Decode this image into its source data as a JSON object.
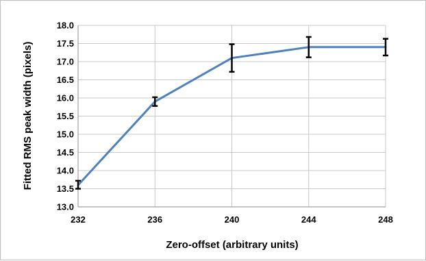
{
  "chart_data": {
    "type": "line",
    "title": "",
    "xlabel": "Zero-offset (arbitrary units)",
    "ylabel": "Fitted RMS peak width  (pixels)",
    "xlim": [
      232,
      248
    ],
    "ylim": [
      13.0,
      18.0
    ],
    "x_ticks": [
      "232",
      "236",
      "240",
      "244",
      "248"
    ],
    "y_ticks": [
      "13.0",
      "13.5",
      "14.0",
      "14.5",
      "15.0",
      "15.5",
      "16.0",
      "16.5",
      "17.0",
      "17.5",
      "18.0"
    ],
    "grid": true,
    "legend": "none",
    "series": [
      {
        "color": "#4f81bd",
        "x": [
          232,
          236,
          240,
          244,
          248
        ],
        "y": [
          13.6,
          15.9,
          17.1,
          17.4,
          17.4
        ],
        "error_low": [
          13.5,
          15.78,
          16.72,
          17.12,
          17.17
        ],
        "error_high": [
          13.72,
          16.02,
          17.48,
          17.68,
          17.63
        ]
      }
    ]
  }
}
